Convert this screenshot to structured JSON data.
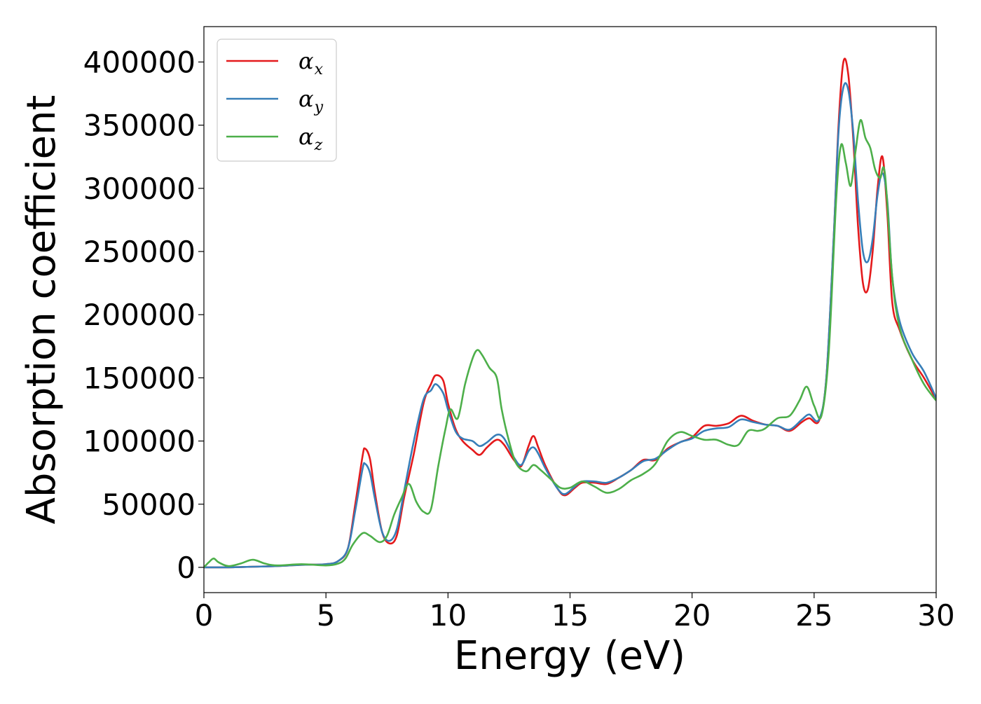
{
  "chart_data": {
    "type": "line",
    "xlabel": "Energy (eV)",
    "ylabel": "Absorption coefficient",
    "xlim": [
      0,
      30
    ],
    "ylim": [
      -20000,
      428000
    ],
    "xticks": [
      0,
      5,
      10,
      15,
      20,
      25,
      30
    ],
    "yticks": [
      0,
      50000,
      100000,
      150000,
      200000,
      250000,
      300000,
      350000,
      400000
    ],
    "grid": false,
    "legend_position": "top-left",
    "series": [
      {
        "name": "α",
        "subscript": "x",
        "color": "#e41a1c",
        "points": [
          [
            0,
            0
          ],
          [
            1,
            0
          ],
          [
            2,
            500
          ],
          [
            3,
            1000
          ],
          [
            4,
            2000
          ],
          [
            5,
            2500
          ],
          [
            5.5,
            5000
          ],
          [
            5.9,
            15000
          ],
          [
            6.2,
            50000
          ],
          [
            6.5,
            88000
          ],
          [
            6.6,
            94000
          ],
          [
            6.8,
            86000
          ],
          [
            7.0,
            60000
          ],
          [
            7.3,
            28000
          ],
          [
            7.6,
            19000
          ],
          [
            7.9,
            25000
          ],
          [
            8.2,
            55000
          ],
          [
            8.6,
            90000
          ],
          [
            9.0,
            130000
          ],
          [
            9.3,
            145000
          ],
          [
            9.5,
            152000
          ],
          [
            9.8,
            148000
          ],
          [
            10.0,
            130000
          ],
          [
            10.3,
            110000
          ],
          [
            10.6,
            100000
          ],
          [
            11.0,
            93000
          ],
          [
            11.3,
            89000
          ],
          [
            11.6,
            95000
          ],
          [
            12.0,
            101000
          ],
          [
            12.3,
            97000
          ],
          [
            12.7,
            85000
          ],
          [
            13.0,
            80000
          ],
          [
            13.3,
            96000
          ],
          [
            13.5,
            104000
          ],
          [
            13.7,
            95000
          ],
          [
            14.0,
            80000
          ],
          [
            14.5,
            62000
          ],
          [
            14.8,
            57000
          ],
          [
            15.2,
            63000
          ],
          [
            15.5,
            67000
          ],
          [
            16.0,
            67000
          ],
          [
            16.5,
            66000
          ],
          [
            17.0,
            71000
          ],
          [
            17.5,
            77000
          ],
          [
            18.0,
            85000
          ],
          [
            18.5,
            85000
          ],
          [
            19.0,
            94000
          ],
          [
            19.5,
            99000
          ],
          [
            20.0,
            103000
          ],
          [
            20.5,
            112000
          ],
          [
            21.0,
            112000
          ],
          [
            21.5,
            114000
          ],
          [
            22.0,
            120000
          ],
          [
            22.5,
            116000
          ],
          [
            23.0,
            113000
          ],
          [
            23.5,
            112000
          ],
          [
            24.0,
            108000
          ],
          [
            24.5,
            115000
          ],
          [
            24.8,
            118000
          ],
          [
            25.2,
            116000
          ],
          [
            25.5,
            150000
          ],
          [
            25.8,
            260000
          ],
          [
            26.0,
            350000
          ],
          [
            26.2,
            400000
          ],
          [
            26.4,
            390000
          ],
          [
            26.6,
            340000
          ],
          [
            26.8,
            270000
          ],
          [
            27.0,
            225000
          ],
          [
            27.2,
            220000
          ],
          [
            27.4,
            250000
          ],
          [
            27.6,
            300000
          ],
          [
            27.8,
            325000
          ],
          [
            28.0,
            280000
          ],
          [
            28.2,
            210000
          ],
          [
            28.5,
            188000
          ],
          [
            29.0,
            165000
          ],
          [
            29.5,
            150000
          ],
          [
            30.0,
            133000
          ]
        ]
      },
      {
        "name": "α",
        "subscript": "y",
        "color": "#377eb8",
        "points": [
          [
            0,
            0
          ],
          [
            1,
            0
          ],
          [
            2,
            500
          ],
          [
            3,
            1000
          ],
          [
            4,
            2000
          ],
          [
            5,
            2500
          ],
          [
            5.5,
            5000
          ],
          [
            5.9,
            15000
          ],
          [
            6.2,
            45000
          ],
          [
            6.5,
            78000
          ],
          [
            6.6,
            82000
          ],
          [
            6.8,
            75000
          ],
          [
            7.0,
            55000
          ],
          [
            7.3,
            28000
          ],
          [
            7.6,
            21000
          ],
          [
            7.9,
            30000
          ],
          [
            8.2,
            60000
          ],
          [
            8.6,
            100000
          ],
          [
            9.0,
            133000
          ],
          [
            9.3,
            140000
          ],
          [
            9.5,
            145000
          ],
          [
            9.8,
            138000
          ],
          [
            10.0,
            125000
          ],
          [
            10.3,
            108000
          ],
          [
            10.6,
            102000
          ],
          [
            11.0,
            100000
          ],
          [
            11.3,
            96000
          ],
          [
            11.6,
            99000
          ],
          [
            12.0,
            105000
          ],
          [
            12.3,
            102000
          ],
          [
            12.7,
            87000
          ],
          [
            13.0,
            81000
          ],
          [
            13.3,
            92000
          ],
          [
            13.5,
            95000
          ],
          [
            13.7,
            90000
          ],
          [
            14.0,
            78000
          ],
          [
            14.5,
            62000
          ],
          [
            14.8,
            58000
          ],
          [
            15.2,
            64000
          ],
          [
            15.5,
            68000
          ],
          [
            16.0,
            68000
          ],
          [
            16.5,
            67000
          ],
          [
            17.0,
            71000
          ],
          [
            17.5,
            77000
          ],
          [
            18.0,
            84000
          ],
          [
            18.5,
            86000
          ],
          [
            19.0,
            93000
          ],
          [
            19.5,
            99000
          ],
          [
            20.0,
            102000
          ],
          [
            20.5,
            108000
          ],
          [
            21.0,
            110000
          ],
          [
            21.5,
            111000
          ],
          [
            22.0,
            117000
          ],
          [
            22.5,
            115000
          ],
          [
            23.0,
            113000
          ],
          [
            23.5,
            112000
          ],
          [
            24.0,
            109000
          ],
          [
            24.5,
            117000
          ],
          [
            24.8,
            121000
          ],
          [
            25.2,
            117000
          ],
          [
            25.5,
            150000
          ],
          [
            25.8,
            260000
          ],
          [
            26.0,
            345000
          ],
          [
            26.2,
            380000
          ],
          [
            26.4,
            378000
          ],
          [
            26.6,
            345000
          ],
          [
            26.8,
            290000
          ],
          [
            27.0,
            250000
          ],
          [
            27.2,
            242000
          ],
          [
            27.4,
            260000
          ],
          [
            27.6,
            295000
          ],
          [
            27.8,
            312000
          ],
          [
            28.0,
            290000
          ],
          [
            28.2,
            230000
          ],
          [
            28.5,
            195000
          ],
          [
            29.0,
            170000
          ],
          [
            29.5,
            155000
          ],
          [
            30.0,
            134000
          ]
        ]
      },
      {
        "name": "α",
        "subscript": "z",
        "color": "#4daf4a",
        "points": [
          [
            0,
            0
          ],
          [
            0.2,
            4000
          ],
          [
            0.4,
            7000
          ],
          [
            0.6,
            4000
          ],
          [
            1.0,
            1000
          ],
          [
            1.5,
            3000
          ],
          [
            2.0,
            6000
          ],
          [
            2.5,
            3000
          ],
          [
            3.0,
            1500
          ],
          [
            4.0,
            2500
          ],
          [
            5.0,
            1500
          ],
          [
            5.5,
            3000
          ],
          [
            5.8,
            7000
          ],
          [
            6.1,
            18000
          ],
          [
            6.5,
            27000
          ],
          [
            6.8,
            25000
          ],
          [
            7.2,
            20000
          ],
          [
            7.5,
            25000
          ],
          [
            7.8,
            42000
          ],
          [
            8.1,
            55000
          ],
          [
            8.4,
            66000
          ],
          [
            8.7,
            52000
          ],
          [
            9.0,
            44000
          ],
          [
            9.3,
            46000
          ],
          [
            9.6,
            80000
          ],
          [
            9.9,
            110000
          ],
          [
            10.1,
            125000
          ],
          [
            10.4,
            118000
          ],
          [
            10.7,
            145000
          ],
          [
            11.0,
            165000
          ],
          [
            11.2,
            172000
          ],
          [
            11.4,
            168000
          ],
          [
            11.7,
            158000
          ],
          [
            12.0,
            150000
          ],
          [
            12.2,
            125000
          ],
          [
            12.5,
            100000
          ],
          [
            12.8,
            82000
          ],
          [
            13.2,
            76000
          ],
          [
            13.5,
            81000
          ],
          [
            13.8,
            77000
          ],
          [
            14.2,
            70000
          ],
          [
            14.6,
            63000
          ],
          [
            15.0,
            63000
          ],
          [
            15.5,
            68000
          ],
          [
            16.0,
            64000
          ],
          [
            16.5,
            59000
          ],
          [
            17.0,
            62000
          ],
          [
            17.5,
            69000
          ],
          [
            18.0,
            74000
          ],
          [
            18.5,
            82000
          ],
          [
            19.0,
            100000
          ],
          [
            19.5,
            107000
          ],
          [
            20.0,
            104000
          ],
          [
            20.5,
            101000
          ],
          [
            21.0,
            101000
          ],
          [
            21.5,
            97000
          ],
          [
            21.9,
            97000
          ],
          [
            22.3,
            108000
          ],
          [
            22.7,
            108000
          ],
          [
            23.0,
            110000
          ],
          [
            23.5,
            118000
          ],
          [
            24.0,
            120000
          ],
          [
            24.4,
            132000
          ],
          [
            24.7,
            143000
          ],
          [
            25.0,
            128000
          ],
          [
            25.3,
            120000
          ],
          [
            25.6,
            170000
          ],
          [
            25.9,
            290000
          ],
          [
            26.1,
            334000
          ],
          [
            26.3,
            320000
          ],
          [
            26.5,
            302000
          ],
          [
            26.7,
            330000
          ],
          [
            26.9,
            354000
          ],
          [
            27.1,
            340000
          ],
          [
            27.3,
            332000
          ],
          [
            27.5,
            315000
          ],
          [
            27.7,
            308000
          ],
          [
            27.9,
            312000
          ],
          [
            28.2,
            230000
          ],
          [
            28.5,
            190000
          ],
          [
            29.0,
            165000
          ],
          [
            29.5,
            145000
          ],
          [
            30.0,
            132000
          ]
        ]
      }
    ]
  }
}
